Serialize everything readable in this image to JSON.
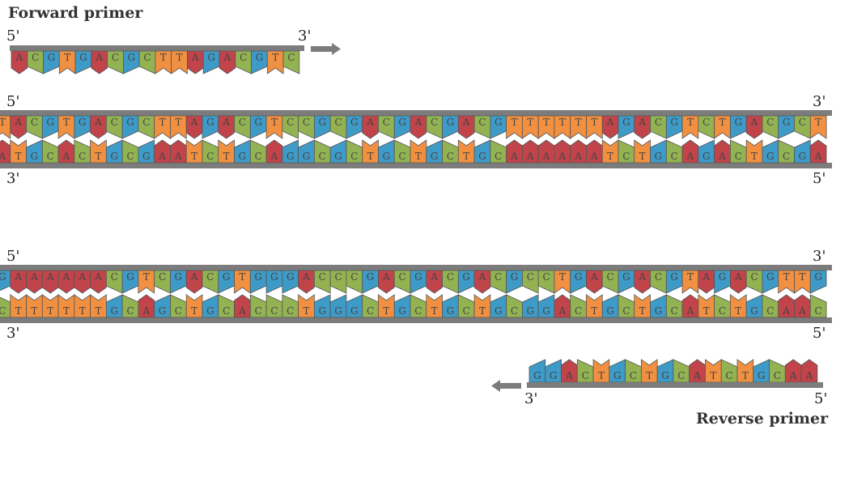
{
  "colors": {
    "A": "#c0444a",
    "C": "#93b352",
    "G": "#3e9ac6",
    "T": "#f19041",
    "backbone": "#7c7c7c",
    "arrow": "#7c7c7c",
    "outline": "#555555"
  },
  "labels": {
    "forward_primer": "Forward primer",
    "reverse_primer": "Reverse primer",
    "five_prime": "5'",
    "three_prime": "3'"
  },
  "forward_primer": {
    "sequence": "ACGTGACGCTTAGACGTC",
    "direction_arrow": "right"
  },
  "dna1": {
    "top": "TACGTGACGCTTAGACGTCCGCGACGACGACGTTTTTTAGACGTCTGACGCT",
    "bottom": "ATGCACTGCGAATCTGCAGGCGCTGCTGCTGCAAAAAATCTGCAGACTGCGA"
  },
  "dna2": {
    "top": "GAAAAAACGTCGACGTGGGACCCGACGACGACGCCTGACGACGTAGACGTTG",
    "bottom": "CTTTTTTGCAGCTGCACCCTGGGCTGCTGCTGCGGACTGCTGCATCTGCAAC"
  },
  "reverse_primer": {
    "sequence": "GGACTGCTGCATCTGCAA",
    "direction_arrow": "left"
  }
}
